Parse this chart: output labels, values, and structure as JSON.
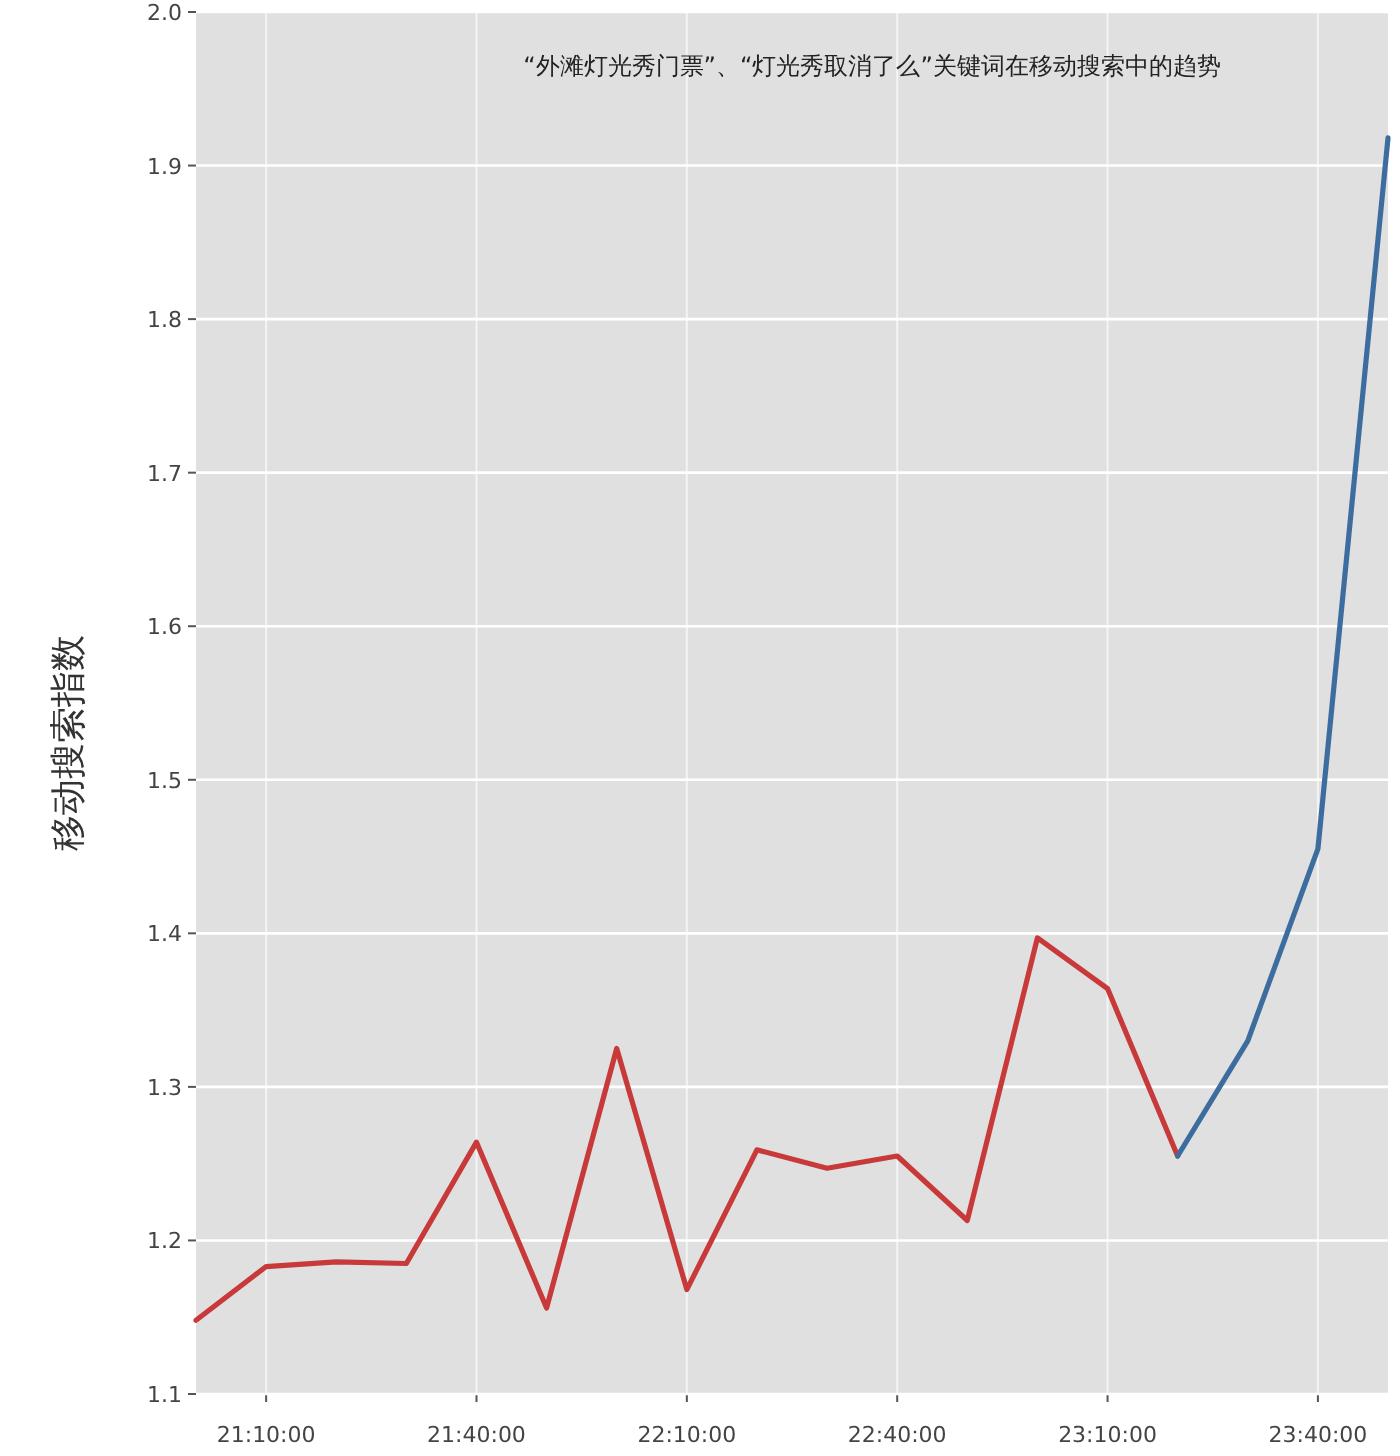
{
  "chart_data": {
    "type": "line",
    "title": "“外滩灯光秀门票”、“灯光秀取消了么”关键词在移动搜索中的趋势",
    "ylabel": "移动搜索指数",
    "series": [
      {
        "color": "#c8393a",
        "x": [
          21.0,
          21.1667,
          21.3333,
          21.5,
          21.6667,
          21.8333,
          22.0,
          22.1667,
          22.3333,
          22.5,
          22.6667,
          22.8333,
          23.0,
          23.1667,
          23.3333
        ],
        "values": [
          1.148,
          1.183,
          1.186,
          1.185,
          1.264,
          1.156,
          1.325,
          1.168,
          1.259,
          1.247,
          1.255,
          1.213,
          1.397,
          1.364,
          1.255
        ]
      },
      {
        "color": "#3d6d9e",
        "x": [
          23.3333,
          23.5,
          23.6667,
          23.8333
        ],
        "values": [
          1.255,
          1.33,
          1.455,
          1.918
        ]
      }
    ],
    "xlim": [
      21.0,
      23.8333
    ],
    "ylim": [
      1.1,
      2.0
    ],
    "xticks": [
      {
        "value": 21.1667,
        "label": "21:10:00"
      },
      {
        "value": 21.6667,
        "label": "21:40:00"
      },
      {
        "value": 22.1667,
        "label": "22:10:00"
      },
      {
        "value": 22.6667,
        "label": "22:40:00"
      },
      {
        "value": 23.1667,
        "label": "23:10:00"
      },
      {
        "value": 23.6667,
        "label": "23:40:00"
      }
    ],
    "yticks": [
      1.1,
      1.2,
      1.3,
      1.4,
      1.5,
      1.6,
      1.7,
      1.8,
      1.9,
      {
        "value": 2.0,
        "label": "2.0"
      }
    ],
    "grid": true,
    "line_style": "solid",
    "marker": "none"
  }
}
